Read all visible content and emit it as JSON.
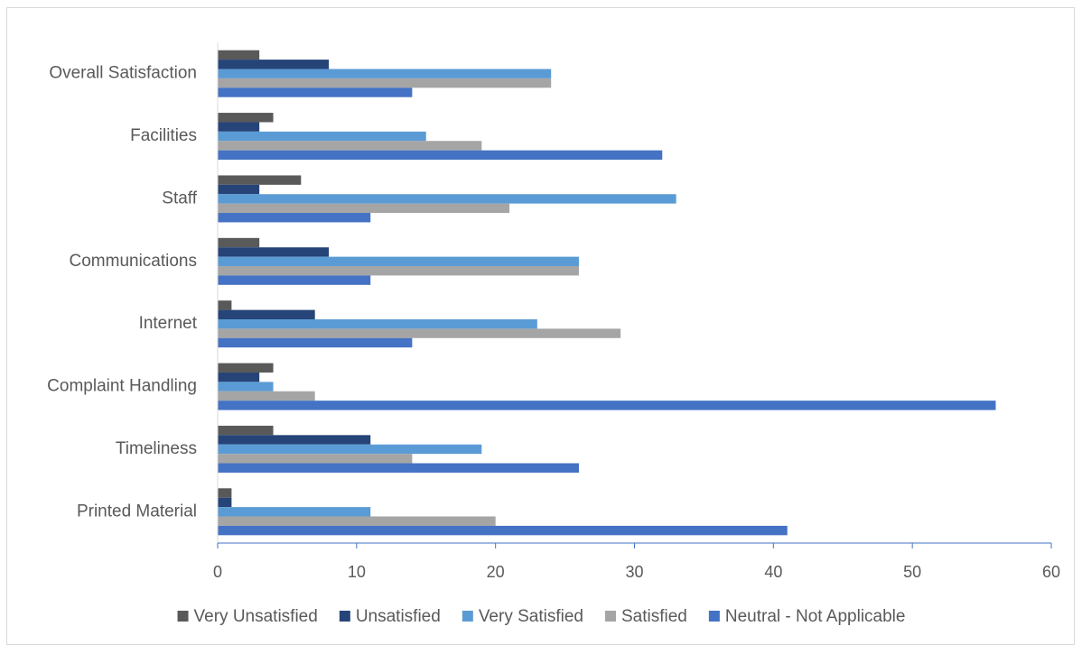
{
  "chart_data": {
    "type": "bar",
    "orientation": "horizontal",
    "title": "",
    "xlabel": "",
    "ylabel": "",
    "xlim": [
      0,
      60
    ],
    "x_ticks": [
      0,
      10,
      20,
      30,
      40,
      50,
      60
    ],
    "grid": false,
    "legend_position": "bottom",
    "categories": [
      "Overall Satisfaction",
      "Facilities",
      "Staff",
      "Communications",
      "Internet",
      "Complaint Handling",
      "Timeliness",
      "Printed Material"
    ],
    "series": [
      {
        "name": "Very Unsatisfied",
        "color": "#595959",
        "values": [
          3,
          4,
          6,
          3,
          1,
          4,
          4,
          1
        ]
      },
      {
        "name": "Unsatisfied",
        "color": "#264478",
        "values": [
          8,
          3,
          3,
          8,
          7,
          3,
          11,
          1
        ]
      },
      {
        "name": "Very Satisfied",
        "color": "#5B9BD5",
        "values": [
          24,
          15,
          33,
          26,
          23,
          4,
          19,
          11
        ]
      },
      {
        "name": "Satisfied",
        "color": "#A5A5A5",
        "values": [
          24,
          19,
          21,
          26,
          29,
          7,
          14,
          20
        ]
      },
      {
        "name": "Neutral - Not Applicable",
        "color": "#4472C4",
        "values": [
          14,
          32,
          11,
          11,
          14,
          56,
          26,
          41
        ]
      }
    ]
  }
}
